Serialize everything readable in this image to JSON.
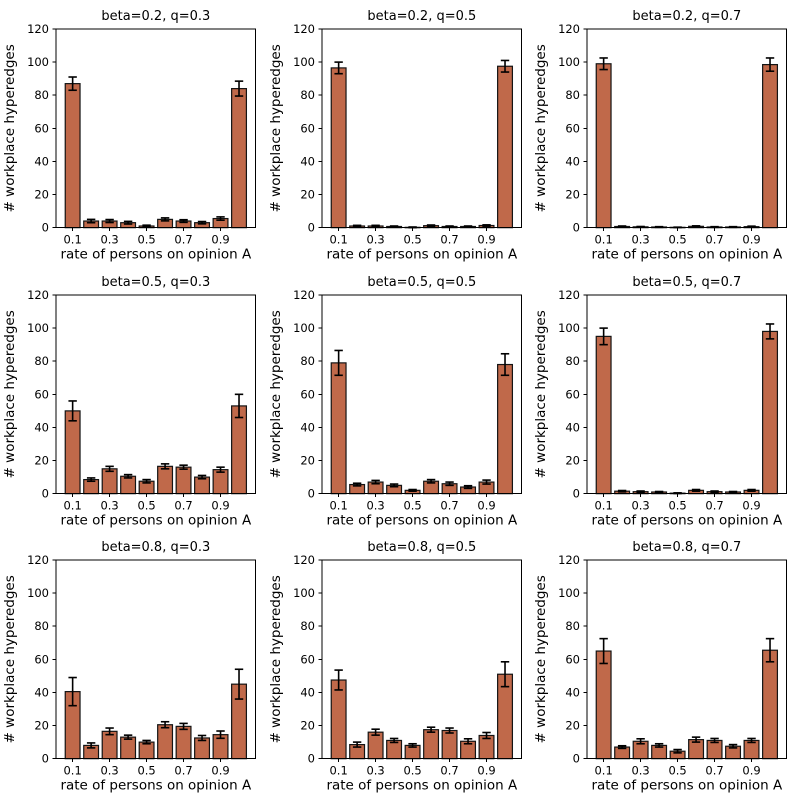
{
  "figure": {
    "background": "#ffffff",
    "text_color": "#000000"
  },
  "chart_data": {
    "type": "bar",
    "grid_layout": "3x3",
    "x": [
      0.1,
      0.2,
      0.3,
      0.4,
      0.5,
      0.6,
      0.7,
      0.8,
      0.9,
      1.0
    ],
    "xlabel": "rate of persons on opinion A",
    "ylabel": "# workplace hyperedges",
    "ylim": [
      0,
      120
    ],
    "yticks": [
      0,
      20,
      40,
      60,
      80,
      100,
      120
    ],
    "xticks": [
      0.1,
      0.3,
      0.5,
      0.7,
      0.9
    ],
    "xtick_labels": [
      "0.1",
      "0.3",
      "0.5",
      "0.7",
      "0.9"
    ],
    "ytick_labels": [
      "0",
      "20",
      "40",
      "60",
      "80",
      "100",
      "120"
    ],
    "grid_lines": "off",
    "legend": "none",
    "bar_color": "#c0694a",
    "bar_edge_color": "#141414",
    "error_bar_color": "#000000",
    "spine_color": "#000000",
    "subplots": [
      {
        "title": "beta=0.2, q=0.3",
        "values": [
          87,
          4,
          4,
          3,
          1,
          5,
          4,
          3,
          5.5,
          84
        ],
        "errors": [
          4,
          1,
          0.9,
          0.8,
          0.5,
          0.9,
          0.8,
          0.7,
          1,
          4.5
        ]
      },
      {
        "title": "beta=0.2, q=0.5",
        "values": [
          96.5,
          1,
          1,
          0.7,
          0.2,
          1.2,
          0.7,
          0.7,
          1.3,
          97.5
        ],
        "errors": [
          3.5,
          0.4,
          0.4,
          0.3,
          0.2,
          0.4,
          0.3,
          0.3,
          0.4,
          3.5
        ]
      },
      {
        "title": "beta=0.2, q=0.7",
        "values": [
          99,
          0.7,
          0.5,
          0.4,
          0.2,
          0.8,
          0.4,
          0.4,
          0.6,
          98.5
        ],
        "errors": [
          3.5,
          0.3,
          0.2,
          0.2,
          0.1,
          0.3,
          0.2,
          0.2,
          0.3,
          4
        ]
      },
      {
        "title": "beta=0.5, q=0.3",
        "values": [
          50,
          8.5,
          15,
          10.5,
          7.5,
          16.5,
          16,
          10,
          14.5,
          53
        ],
        "errors": [
          6,
          1,
          1.5,
          1,
          1,
          1.5,
          1.2,
          1,
          1.5,
          7
        ]
      },
      {
        "title": "beta=0.5, q=0.5",
        "values": [
          79,
          5.5,
          7,
          5,
          2,
          7.5,
          6,
          4,
          7,
          78
        ],
        "errors": [
          7.5,
          0.8,
          1,
          0.8,
          0.5,
          1,
          1,
          0.8,
          1.2,
          6.5
        ]
      },
      {
        "title": "beta=0.5, q=0.7",
        "values": [
          95,
          1.5,
          1.2,
          1,
          0.3,
          2,
          1.2,
          1,
          2,
          98
        ],
        "errors": [
          5,
          0.4,
          0.4,
          0.3,
          0.2,
          0.5,
          0.4,
          0.3,
          0.5,
          4.5
        ]
      },
      {
        "title": "beta=0.8, q=0.3",
        "values": [
          40.5,
          8,
          16.5,
          13,
          10,
          20.5,
          19.5,
          12.5,
          14.5,
          45
        ],
        "errors": [
          8.5,
          1.5,
          2,
          1.2,
          1,
          1.8,
          1.8,
          1.5,
          2.2,
          9
        ]
      },
      {
        "title": "beta=0.8, q=0.5",
        "values": [
          47.5,
          8.5,
          16,
          11,
          8,
          17.5,
          17,
          10.5,
          14,
          51
        ],
        "errors": [
          6,
          1.5,
          1.8,
          1.2,
          1,
          1.5,
          1.5,
          1.5,
          1.8,
          7.5
        ]
      },
      {
        "title": "beta=0.8, q=0.7",
        "values": [
          65,
          7,
          10.5,
          8,
          4.5,
          11.5,
          11,
          7.5,
          11,
          65.5
        ],
        "errors": [
          7.5,
          0.8,
          1.5,
          1,
          1,
          1.5,
          1.2,
          1,
          1.2,
          7
        ]
      }
    ]
  }
}
